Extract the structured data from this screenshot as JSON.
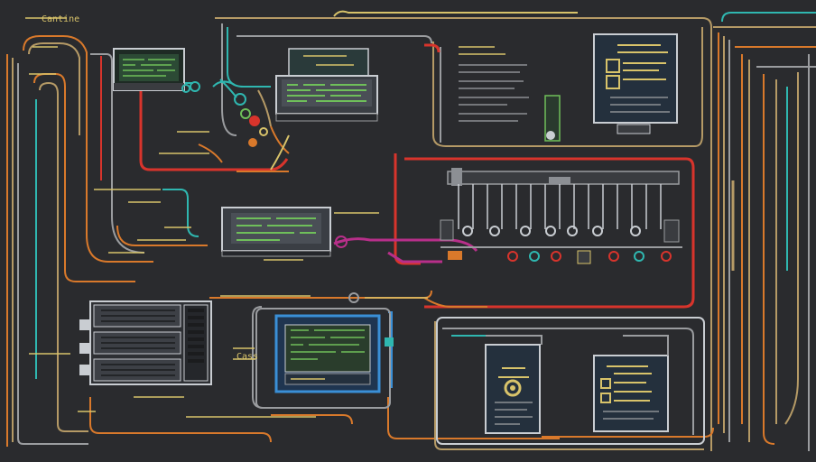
{
  "diagram": {
    "style": "dark schematic wiring diagram",
    "background": "#2a2b2e",
    "colors": {
      "wire_orange": "#d9792b",
      "wire_red": "#d8342c",
      "wire_tan": "#b59a66",
      "wire_teal": "#2fb7b0",
      "wire_blue": "#3a8fd6",
      "wire_magenta": "#b82f8a",
      "wire_gray": "#9a9c9f",
      "label_yellow": "#d8c36a",
      "panel_dark": "#24303d",
      "panel_frame": "#c9cdd2",
      "screen_green": "#6fbf5a"
    },
    "legible_text": [
      "Cantine",
      "Cass"
    ],
    "components": [
      "server-rack",
      "monitor-module-top-left",
      "monitor-module-top-center",
      "monitor-module-middle",
      "monitor-module-bottom-center",
      "info-panel-top-right",
      "info-panel-bottom-left",
      "info-panel-bottom-right",
      "connector-bus",
      "cable-bundle-left",
      "cable-bundle-right"
    ]
  }
}
